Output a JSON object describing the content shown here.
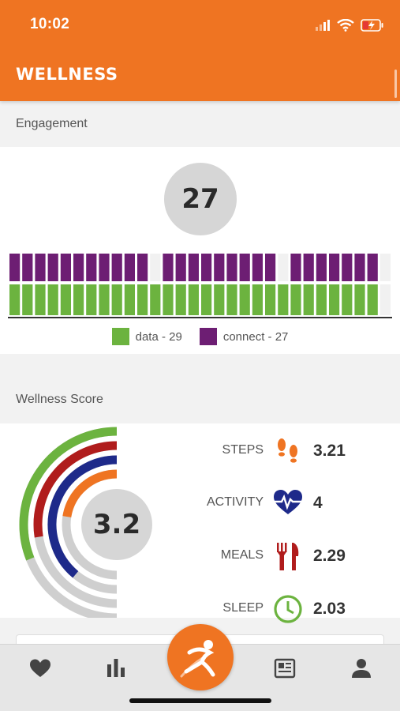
{
  "status_bar": {
    "time": "10:02"
  },
  "header": {
    "title": "WELLNESS"
  },
  "engagement": {
    "section_label": "Engagement",
    "value": "27",
    "legend": [
      {
        "label": "data - 29",
        "color": "#6cb33f"
      },
      {
        "label": "connect - 27",
        "color": "#6d1e73"
      }
    ],
    "bars": {
      "data": [
        1,
        1,
        1,
        1,
        1,
        1,
        1,
        1,
        1,
        1,
        1,
        1,
        1,
        1,
        1,
        1,
        1,
        1,
        1,
        1,
        1,
        1,
        1,
        1,
        1,
        1,
        1,
        1,
        1,
        0
      ],
      "connect": [
        1,
        1,
        1,
        1,
        1,
        1,
        1,
        1,
        1,
        1,
        1,
        0,
        1,
        1,
        1,
        1,
        1,
        1,
        1,
        1,
        1,
        0,
        1,
        1,
        1,
        1,
        1,
        1,
        1,
        0
      ]
    }
  },
  "wellness": {
    "section_label": "Wellness Score",
    "score": "3.2",
    "rings": [
      {
        "color": "#6cb33f",
        "fraction": 0.62
      },
      {
        "color": "#b01c1c",
        "fraction": 0.55
      },
      {
        "color": "#1e2a8a",
        "fraction": 0.78
      },
      {
        "color": "#ef7422",
        "fraction": 0.45
      }
    ],
    "metrics": [
      {
        "label": "STEPS",
        "value": "3.21",
        "icon": "footsteps-icon"
      },
      {
        "label": "ACTIVITY",
        "value": "4",
        "icon": "heart-pulse-icon"
      },
      {
        "label": "MEALS",
        "value": "2.29",
        "icon": "fork-knife-icon"
      },
      {
        "label": "SLEEP",
        "value": "2.03",
        "icon": "clock-icon"
      }
    ]
  },
  "bottom_nav": {
    "items": [
      "heart-icon",
      "bar-chart-icon",
      "runner-icon",
      "news-icon",
      "person-icon"
    ]
  },
  "colors": {
    "brand": "#ef7422",
    "data": "#6cb33f",
    "connect": "#6d1e73"
  }
}
